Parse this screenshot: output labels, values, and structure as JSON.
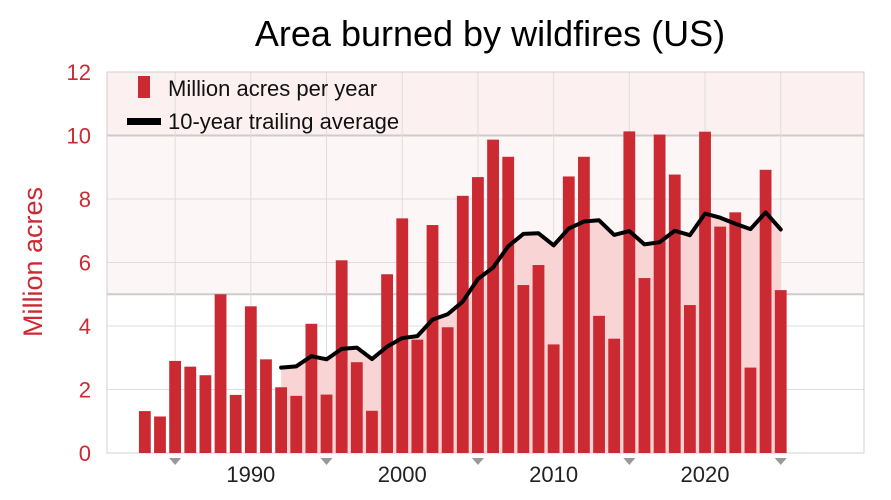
{
  "chart_data": {
    "type": "bar",
    "title": "Area burned by wildfires (US)",
    "xlabel": "",
    "ylabel": "Million acres",
    "ylim": [
      0,
      12
    ],
    "xlim": [
      1980.5,
      2030.5
    ],
    "yticks": [
      "0",
      "2",
      "4",
      "6",
      "8",
      "10",
      "12"
    ],
    "xticks": [
      "1990",
      "2000",
      "2010",
      "2020"
    ],
    "xtick_values": [
      1990,
      2000,
      2010,
      2020
    ],
    "grid": true,
    "legend_position": "top-left",
    "colors": {
      "bar": "#cc2a33",
      "average_line": "#000000",
      "average_fill": "#f8d4d4",
      "axis_text": "#cc2a33",
      "background_band": "#fdf0f0",
      "grid": "#dddddd"
    },
    "series": [
      {
        "name": "Million acres per year",
        "type": "bar",
        "x": [
          1983,
          1984,
          1985,
          1986,
          1987,
          1988,
          1989,
          1990,
          1991,
          1992,
          1993,
          1994,
          1995,
          1996,
          1997,
          1998,
          1999,
          2000,
          2001,
          2002,
          2003,
          2004,
          2005,
          2006,
          2007,
          2008,
          2009,
          2010,
          2011,
          2012,
          2013,
          2014,
          2015,
          2016,
          2017,
          2018,
          2019,
          2020,
          2021,
          2022,
          2023,
          2024,
          2025
        ],
        "values": [
          1.32,
          1.15,
          2.9,
          2.72,
          2.45,
          5.0,
          1.83,
          4.62,
          2.95,
          2.07,
          1.8,
          4.07,
          1.84,
          6.07,
          2.86,
          1.33,
          5.63,
          7.39,
          3.57,
          7.18,
          3.96,
          8.1,
          8.69,
          9.87,
          9.33,
          5.29,
          5.92,
          3.42,
          8.71,
          9.33,
          4.32,
          3.6,
          10.13,
          5.51,
          10.03,
          8.77,
          4.66,
          10.12,
          7.13,
          7.58,
          2.69,
          8.92,
          5.13
        ]
      },
      {
        "name": "10-year trailing average",
        "type": "line",
        "x": [
          1992,
          1993,
          1994,
          1995,
          1996,
          1997,
          1998,
          1999,
          2000,
          2001,
          2002,
          2003,
          2004,
          2005,
          2006,
          2007,
          2008,
          2009,
          2010,
          2011,
          2012,
          2013,
          2014,
          2015,
          2016,
          2017,
          2018,
          2019,
          2020,
          2021,
          2022,
          2023,
          2024,
          2025
        ],
        "values": [
          2.69,
          2.73,
          3.05,
          2.95,
          3.28,
          3.32,
          2.96,
          3.35,
          3.62,
          3.68,
          4.2,
          4.37,
          4.77,
          5.48,
          5.84,
          6.51,
          6.9,
          6.92,
          6.54,
          7.07,
          7.29,
          7.33,
          6.87,
          6.99,
          6.57,
          6.64,
          7.0,
          6.86,
          7.54,
          7.41,
          7.22,
          7.05,
          7.58,
          7.04
        ]
      }
    ]
  }
}
